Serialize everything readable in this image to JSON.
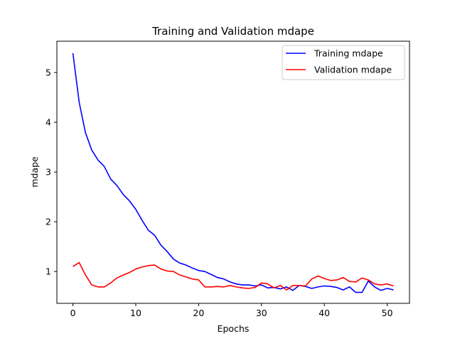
{
  "chart_data": {
    "type": "line",
    "title": "Training and Validation mdape",
    "xlabel": "Epochs",
    "ylabel": "mdape",
    "xlim": [
      -2.55,
      53.55
    ],
    "ylim": [
      0.36,
      5.63
    ],
    "xticks": [
      0,
      10,
      20,
      30,
      40,
      50
    ],
    "yticks": [
      1,
      2,
      3,
      4,
      5
    ],
    "grid": false,
    "legend_position": "top-right",
    "x": [
      0,
      1,
      2,
      3,
      4,
      5,
      6,
      7,
      8,
      9,
      10,
      11,
      12,
      13,
      14,
      15,
      16,
      17,
      18,
      19,
      20,
      21,
      22,
      23,
      24,
      25,
      26,
      27,
      28,
      29,
      30,
      31,
      32,
      33,
      34,
      35,
      36,
      37,
      38,
      39,
      40,
      41,
      42,
      43,
      44,
      45,
      46,
      47,
      48,
      49,
      50,
      51
    ],
    "series": [
      {
        "name": "Training mdape",
        "color": "#0000ff",
        "values": [
          5.39,
          4.4,
          3.79,
          3.44,
          3.24,
          3.11,
          2.86,
          2.73,
          2.55,
          2.42,
          2.25,
          2.03,
          1.83,
          1.73,
          1.53,
          1.4,
          1.25,
          1.17,
          1.13,
          1.07,
          1.02,
          1.0,
          0.94,
          0.88,
          0.85,
          0.79,
          0.75,
          0.73,
          0.73,
          0.71,
          0.73,
          0.67,
          0.68,
          0.65,
          0.69,
          0.62,
          0.72,
          0.7,
          0.66,
          0.69,
          0.71,
          0.7,
          0.68,
          0.63,
          0.69,
          0.58,
          0.58,
          0.81,
          0.69,
          0.62,
          0.66,
          0.63
        ]
      },
      {
        "name": "Validation mdape",
        "color": "#ff0000",
        "values": [
          1.1,
          1.18,
          0.93,
          0.73,
          0.69,
          0.69,
          0.77,
          0.87,
          0.93,
          0.98,
          1.05,
          1.09,
          1.12,
          1.13,
          1.05,
          1.01,
          1.0,
          0.93,
          0.89,
          0.85,
          0.83,
          0.69,
          0.69,
          0.7,
          0.69,
          0.72,
          0.69,
          0.67,
          0.66,
          0.68,
          0.77,
          0.75,
          0.67,
          0.72,
          0.63,
          0.72,
          0.72,
          0.71,
          0.85,
          0.91,
          0.86,
          0.82,
          0.83,
          0.88,
          0.8,
          0.79,
          0.87,
          0.83,
          0.75,
          0.73,
          0.75,
          0.71
        ]
      }
    ]
  }
}
